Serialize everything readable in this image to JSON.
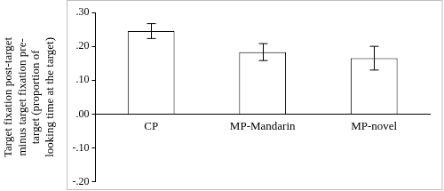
{
  "chart_data": {
    "type": "bar",
    "y_label": [
      "Target fixation post-target",
      "minus target fixation pre-",
      "target (proportion of",
      "looking time at the target)"
    ],
    "categories": [
      "CP",
      "MP-Mandarin",
      "MP-novel"
    ],
    "values": [
      0.245,
      0.183,
      0.165
    ],
    "errors": [
      0.022,
      0.025,
      0.035
    ],
    "color": "#ffffff",
    "ylim": [
      -0.2,
      0.3
    ],
    "yticks": [
      {
        "value": -0.2,
        "label": "-.20"
      },
      {
        "value": -0.1,
        "label": "-.10"
      },
      {
        "value": 0,
        "label": ".00"
      },
      {
        "value": 0.1,
        "label": ".10"
      },
      {
        "value": 0.2,
        "label": ".20"
      },
      {
        "value": 0.3,
        "label": ".30"
      }
    ],
    "grid": false
  }
}
